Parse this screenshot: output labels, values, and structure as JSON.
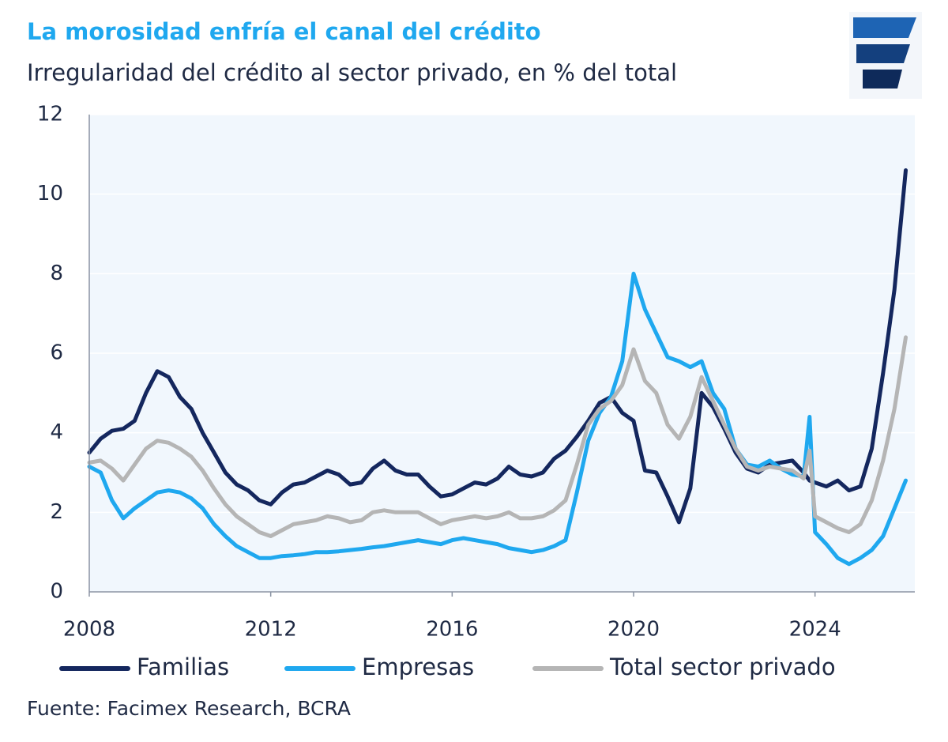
{
  "chart_data": {
    "type": "line",
    "title": "La morosidad enfría el canal del crédito",
    "subtitle": "Irregularidad del crédito al sector privado, en % del total",
    "source": "Fuente: Facimex Research, BCRA",
    "x": [
      2008,
      2008.25,
      2008.5,
      2008.75,
      2009,
      2009.25,
      2009.5,
      2009.75,
      2010,
      2010.25,
      2010.5,
      2010.75,
      2011,
      2011.25,
      2011.5,
      2011.75,
      2012,
      2012.25,
      2012.5,
      2012.75,
      2013,
      2013.25,
      2013.5,
      2013.75,
      2014,
      2014.25,
      2014.5,
      2014.75,
      2015,
      2015.25,
      2015.5,
      2015.75,
      2016,
      2016.25,
      2016.5,
      2016.75,
      2017,
      2017.25,
      2017.5,
      2017.75,
      2018,
      2018.25,
      2018.5,
      2018.75,
      2019,
      2019.25,
      2019.5,
      2019.75,
      2020,
      2020.25,
      2020.5,
      2020.75,
      2021,
      2021.25,
      2021.5,
      2021.75,
      2022,
      2022.25,
      2022.5,
      2022.75,
      2023,
      2023.25,
      2023.5,
      2023.75,
      2023.88,
      2024,
      2024.25,
      2024.5,
      2024.75,
      2025,
      2025.25,
      2025.5,
      2025.75,
      2026
    ],
    "series": [
      {
        "name": "Familias",
        "color": "#14275e",
        "values": [
          3.5,
          3.85,
          4.05,
          4.1,
          4.3,
          5.0,
          5.55,
          5.4,
          4.9,
          4.6,
          4.0,
          3.5,
          3.0,
          2.7,
          2.55,
          2.3,
          2.2,
          2.5,
          2.7,
          2.75,
          2.9,
          3.05,
          2.95,
          2.7,
          2.75,
          3.1,
          3.3,
          3.05,
          2.95,
          2.95,
          2.65,
          2.4,
          2.45,
          2.6,
          2.75,
          2.7,
          2.85,
          3.15,
          2.95,
          2.9,
          3.0,
          3.35,
          3.55,
          3.9,
          4.3,
          4.75,
          4.9,
          4.5,
          4.3,
          3.05,
          3.0,
          2.4,
          1.75,
          2.6,
          5.0,
          4.65,
          4.1,
          3.5,
          3.1,
          3.0,
          3.2,
          3.25,
          3.3,
          3.0,
          2.8,
          2.75,
          2.65,
          2.8,
          2.55,
          2.65,
          3.6,
          5.5,
          7.6,
          10.6
        ]
      },
      {
        "name": "Empresas",
        "color": "#1fa8ef",
        "values": [
          3.15,
          3.0,
          2.3,
          1.85,
          2.1,
          2.3,
          2.5,
          2.55,
          2.5,
          2.35,
          2.1,
          1.7,
          1.4,
          1.15,
          1.0,
          0.85,
          0.85,
          0.9,
          0.92,
          0.95,
          1.0,
          1.0,
          1.02,
          1.05,
          1.08,
          1.12,
          1.15,
          1.2,
          1.25,
          1.3,
          1.25,
          1.2,
          1.3,
          1.35,
          1.3,
          1.25,
          1.2,
          1.1,
          1.05,
          1.0,
          1.05,
          1.15,
          1.3,
          2.5,
          3.8,
          4.5,
          4.9,
          5.8,
          8.0,
          7.1,
          6.5,
          5.9,
          5.8,
          5.65,
          5.8,
          5.0,
          4.6,
          3.6,
          3.2,
          3.15,
          3.3,
          3.1,
          2.95,
          2.9,
          4.4,
          1.5,
          1.2,
          0.85,
          0.7,
          0.85,
          1.05,
          1.4,
          2.1,
          2.8
        ]
      },
      {
        "name": "Total sector privado",
        "color": "#b5b5b5",
        "values": [
          3.25,
          3.3,
          3.1,
          2.8,
          3.2,
          3.6,
          3.8,
          3.75,
          3.6,
          3.4,
          3.05,
          2.6,
          2.2,
          1.9,
          1.7,
          1.5,
          1.4,
          1.55,
          1.7,
          1.75,
          1.8,
          1.9,
          1.85,
          1.75,
          1.8,
          2.0,
          2.05,
          2.0,
          2.0,
          2.0,
          1.85,
          1.7,
          1.8,
          1.85,
          1.9,
          1.85,
          1.9,
          2.0,
          1.85,
          1.85,
          1.9,
          2.05,
          2.3,
          3.2,
          4.2,
          4.6,
          4.8,
          5.2,
          6.1,
          5.3,
          5.0,
          4.2,
          3.85,
          4.4,
          5.4,
          4.8,
          4.2,
          3.6,
          3.15,
          3.05,
          3.15,
          3.1,
          3.05,
          2.85,
          3.55,
          1.9,
          1.75,
          1.6,
          1.5,
          1.7,
          2.3,
          3.3,
          4.6,
          6.4
        ]
      }
    ],
    "xlim": [
      2008,
      2026.2
    ],
    "xticks": [
      2008,
      2012,
      2016,
      2020,
      2024
    ],
    "ylim": [
      0,
      12
    ],
    "yticks": [
      0,
      2,
      4,
      6,
      8,
      10,
      12
    ],
    "grid": true
  }
}
